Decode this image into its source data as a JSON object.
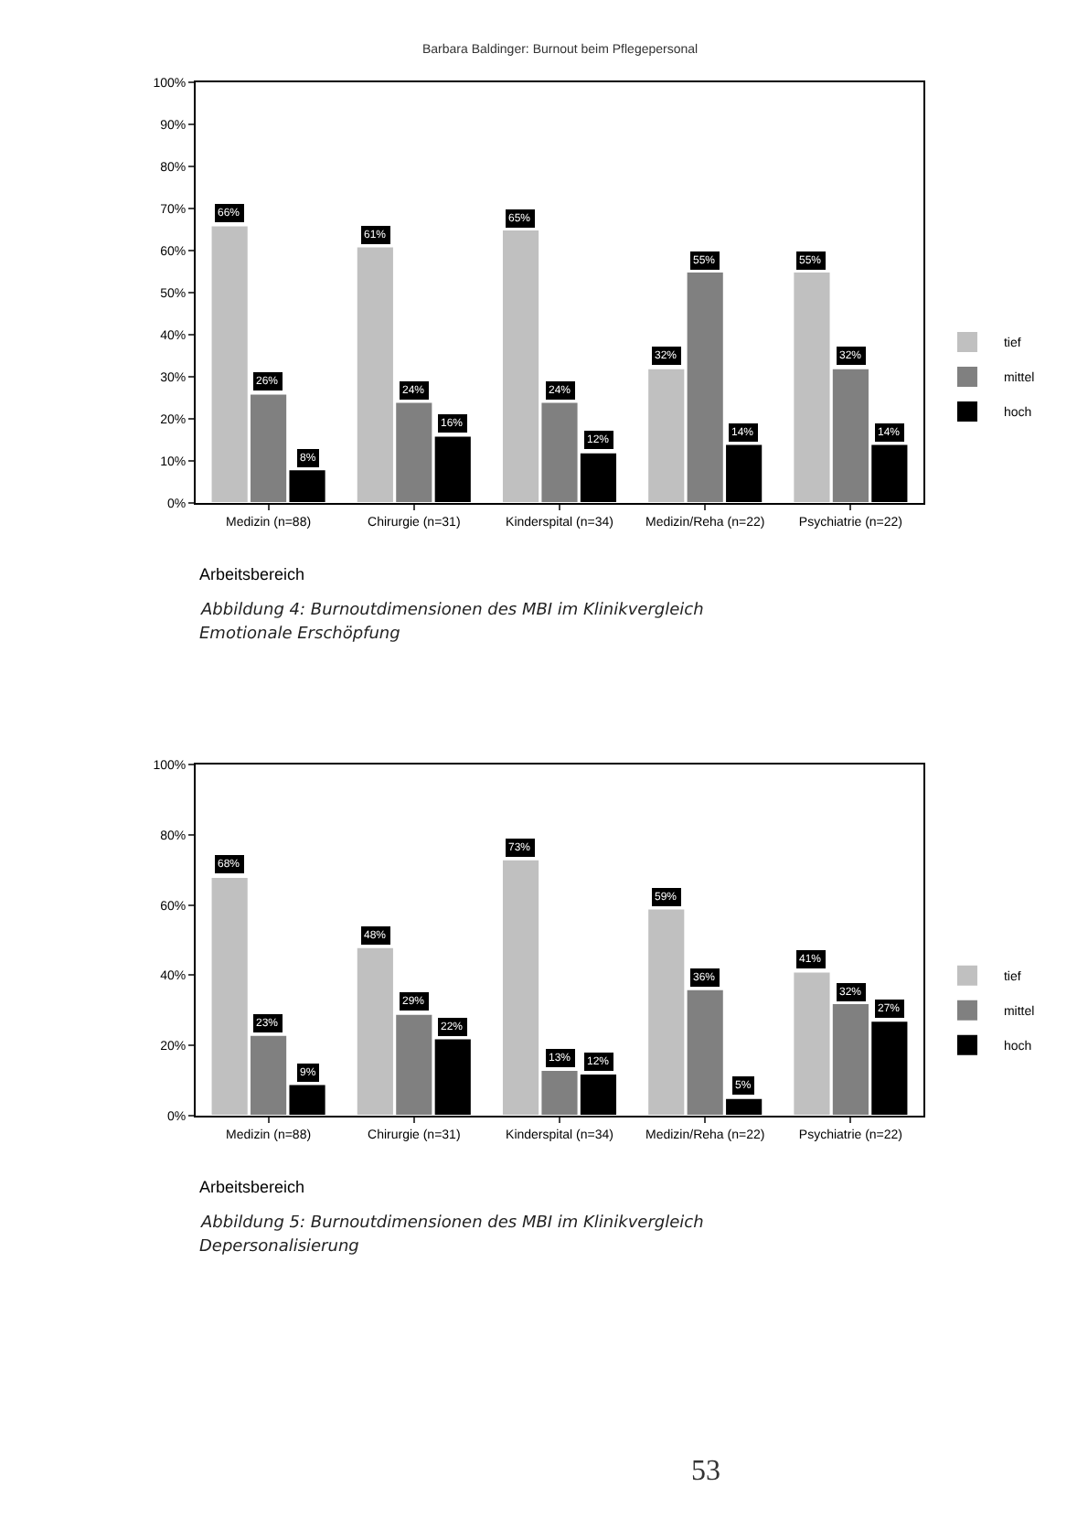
{
  "chart_data": [
    {
      "type": "bar",
      "title": "Abbildung 4: Burnoutdimensionen des MBI im Klinikvergleich",
      "subtitle": "Emotionale Erschöpfung",
      "xlabel": "Arbeitsbereich",
      "annotations": [
        "Barbara Baldinger: Burnout beim Pflegepersonal"
      ],
      "categories": [
        "Medizin (n=88)",
        "Chirurgie (n=31)",
        "Kinderspital (n=34)",
        "Medizin/Reha (n=22)",
        "Psychiatrie (n=22)"
      ],
      "series": [
        {
          "name": "tief",
          "color": "#c0c0c0",
          "values": [
            66,
            61,
            65,
            32,
            55
          ],
          "value_labels": [
            "66%",
            "61%",
            "65%",
            "32%",
            "55%"
          ]
        },
        {
          "name": "mittel",
          "color": "#808080",
          "values": [
            26,
            24,
            24,
            55,
            32
          ],
          "value_labels": [
            "26%",
            "24%",
            "24%",
            "55%",
            "32%"
          ]
        },
        {
          "name": "hoch",
          "color": "#000000",
          "values": [
            8,
            16,
            12,
            14,
            14
          ],
          "value_labels": [
            "8%",
            "16%",
            "12%",
            "14%",
            "14%"
          ]
        }
      ],
      "ylim": [
        0,
        100
      ],
      "yticks": [
        {
          "value": 0,
          "label": "0%"
        },
        {
          "value": 10,
          "label": "10%"
        },
        {
          "value": 20,
          "label": "20%"
        },
        {
          "value": 30,
          "label": "30%"
        },
        {
          "value": 40,
          "label": "40%"
        },
        {
          "value": 50,
          "label": "50%"
        },
        {
          "value": 60,
          "label": "60%"
        },
        {
          "value": 70,
          "label": "70%"
        },
        {
          "value": 80,
          "label": "80%"
        },
        {
          "value": 90,
          "label": "90%"
        },
        {
          "value": 100,
          "label": "100%"
        }
      ],
      "grid": false,
      "legend": "right"
    },
    {
      "type": "bar",
      "title": "Abbildung 5: Burnoutdimensionen des MBI im Klinikvergleich",
      "subtitle": "Depersonalisierung",
      "xlabel": "Arbeitsbereich",
      "annotations": [
        "53"
      ],
      "categories": [
        "Medizin (n=88)",
        "Chirurgie (n=31)",
        "Kinderspital (n=34)",
        "Medizin/Reha (n=22)",
        "Psychiatrie (n=22)"
      ],
      "series": [
        {
          "name": "tief",
          "color": "#c0c0c0",
          "values": [
            68,
            48,
            73,
            59,
            41
          ],
          "value_labels": [
            "68%",
            "48%",
            "73%",
            "59%",
            "41%"
          ]
        },
        {
          "name": "mittel",
          "color": "#808080",
          "values": [
            23,
            29,
            13,
            36,
            32
          ],
          "value_labels": [
            "23%",
            "29%",
            "13%",
            "36%",
            "32%"
          ]
        },
        {
          "name": "hoch",
          "color": "#000000",
          "values": [
            9,
            22,
            12,
            5,
            27
          ],
          "value_labels": [
            "9%",
            "22%",
            "12%",
            "5%",
            "27%"
          ]
        }
      ],
      "ylim": [
        0,
        100
      ],
      "yticks": [
        {
          "value": 0,
          "label": "0%"
        },
        {
          "value": 20,
          "label": "20%"
        },
        {
          "value": 40,
          "label": "40%"
        },
        {
          "value": 60,
          "label": "60%"
        },
        {
          "value": 80,
          "label": "80%"
        },
        {
          "value": 100,
          "label": "100%"
        }
      ],
      "grid": false,
      "legend": "right"
    }
  ]
}
